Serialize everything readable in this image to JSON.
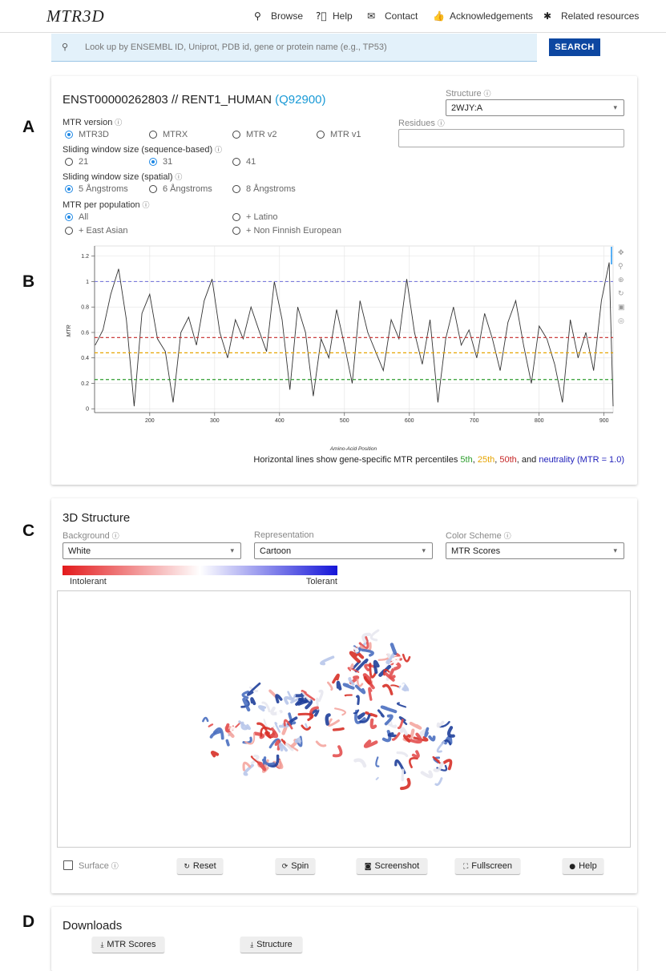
{
  "nav": {
    "logo": "MTR3D",
    "links": [
      "Browse",
      "Help",
      "Contact",
      "Acknowledgements",
      "Related resources"
    ]
  },
  "search": {
    "placeholder": "Look up by ENSEMBL ID, Uniprot, PDB id, gene or protein name (e.g., TP53)",
    "button": "SEARCH"
  },
  "panel_labels": [
    "A",
    "B",
    "C",
    "D"
  ],
  "transcript": {
    "title": "ENST00000262803 // RENT1_HUMAN",
    "uniprot": "(Q92900)"
  },
  "structure": {
    "label": "Structure",
    "value": "2WJY:A"
  },
  "residues": {
    "label": "Residues"
  },
  "options": [
    {
      "label": "MTR version",
      "choices": [
        "MTR3D",
        "MTRX",
        "MTR v2",
        "MTR v1"
      ],
      "selected": 0
    },
    {
      "label": "Sliding window size (sequence-based)",
      "choices": [
        "21",
        "31",
        "41"
      ],
      "selected": 1
    },
    {
      "label": "Sliding window size (spatial)",
      "choices": [
        "5 Ångstroms",
        "6 Ångstroms",
        "8 Ångstroms"
      ],
      "selected": 0
    },
    {
      "label": "MTR per population",
      "choices": [
        "All",
        "+ Latino",
        "+ East Asian",
        "+ Non Finnish European"
      ],
      "selected": 0
    }
  ],
  "chart_data": {
    "type": "line",
    "x_label": "Amino-Acid Position",
    "y_label": "MTR",
    "color": "#333333",
    "x": [
      116,
      128,
      140,
      152,
      164,
      176,
      188,
      200,
      212,
      224,
      236,
      248,
      260,
      272,
      284,
      296,
      308,
      320,
      332,
      344,
      356,
      368,
      380,
      392,
      404,
      416,
      428,
      440,
      452,
      464,
      476,
      488,
      500,
      512,
      524,
      536,
      548,
      560,
      572,
      584,
      596,
      608,
      620,
      632,
      644,
      656,
      668,
      680,
      692,
      704,
      716,
      728,
      740,
      752,
      764,
      776,
      788,
      800,
      812,
      824,
      836,
      848,
      860,
      872,
      884,
      896,
      908,
      914
    ],
    "values": [
      0.5,
      0.62,
      0.9,
      1.1,
      0.7,
      0.02,
      0.75,
      0.9,
      0.55,
      0.45,
      0.05,
      0.6,
      0.72,
      0.5,
      0.85,
      1.02,
      0.6,
      0.4,
      0.7,
      0.55,
      0.8,
      0.62,
      0.45,
      1.0,
      0.7,
      0.15,
      0.8,
      0.6,
      0.1,
      0.55,
      0.4,
      0.78,
      0.5,
      0.2,
      0.85,
      0.6,
      0.45,
      0.3,
      0.7,
      0.55,
      1.02,
      0.6,
      0.35,
      0.7,
      0.05,
      0.55,
      0.8,
      0.5,
      0.62,
      0.4,
      0.75,
      0.55,
      0.3,
      0.68,
      0.85,
      0.5,
      0.2,
      0.65,
      0.55,
      0.35,
      0.05,
      0.7,
      0.4,
      0.6,
      0.3,
      0.85,
      1.15,
      0.02
    ],
    "xlim": [
      115,
      914
    ],
    "xticks": [
      200,
      300,
      400,
      500,
      600,
      700,
      800,
      900
    ],
    "ylim": [
      -0.03,
      1.28
    ],
    "yticks": [
      0,
      0.2,
      0.4,
      0.6,
      0.8,
      1,
      1.2
    ],
    "grid": true,
    "reference_lines": [
      {
        "value": 0.23,
        "color": "#2e9e2e"
      },
      {
        "value": 0.44,
        "color": "#e6a400"
      },
      {
        "value": 0.56,
        "color": "#c62828"
      },
      {
        "value": 1.0,
        "color": "#7b7bdc"
      }
    ],
    "caption": [
      {
        "text": "Horizontal lines show gene-specific MTR percentiles "
      },
      {
        "text": "5th",
        "color": "#2e9e2e"
      },
      {
        "text": ", "
      },
      {
        "text": "25th",
        "color": "#e6a400"
      },
      {
        "text": ", "
      },
      {
        "text": "50th",
        "color": "#c62828"
      },
      {
        "text": ", and "
      },
      {
        "text": "neutrality (MTR = 1.0)",
        "color": "#2222bb"
      }
    ]
  },
  "viewer": {
    "title": "3D Structure",
    "controls": [
      {
        "label": "Background",
        "value": "White"
      },
      {
        "label": "Representation",
        "value": "Cartoon"
      },
      {
        "label": "Color Scheme",
        "value": "MTR Scores"
      }
    ],
    "legend": {
      "low": "Intolerant",
      "high": "Tolerant",
      "colors": [
        "#e31a1c",
        "#ffffff",
        "#1515d8"
      ]
    },
    "surface": "Surface",
    "buttons": [
      "Reset",
      "Spin",
      "Screenshot",
      "Fullscreen",
      "Help"
    ]
  },
  "downloads": {
    "title": "Downloads",
    "buttons": [
      "MTR Scores",
      "Structure"
    ]
  }
}
